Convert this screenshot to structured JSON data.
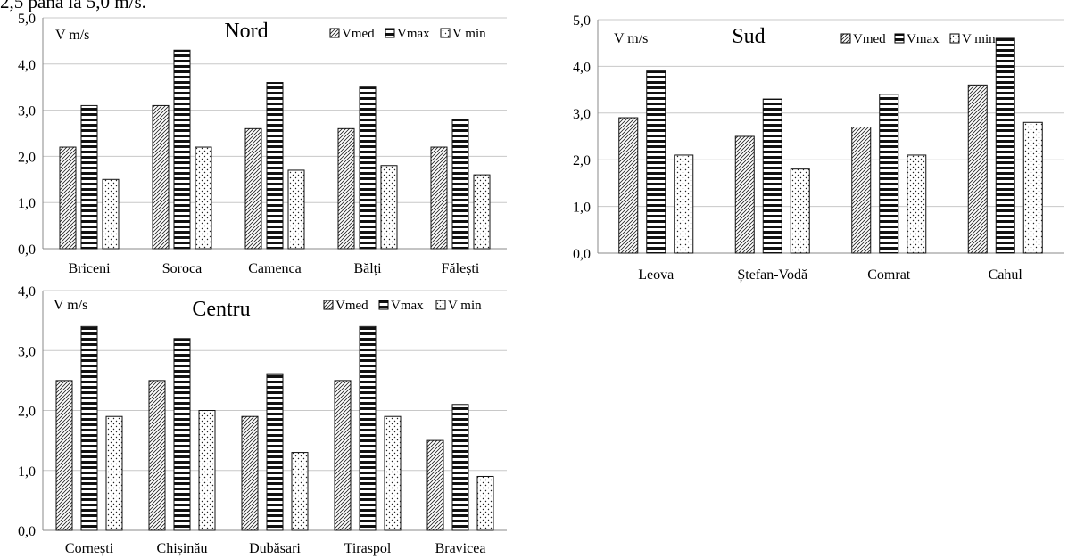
{
  "header_text": "2,5 până la 5,0 m/s.",
  "legend": [
    "Vmed",
    "Vmax",
    "V min"
  ],
  "chart_data": [
    {
      "type": "bar",
      "title": "Nord",
      "ylabel": "V m/s",
      "ylim": [
        0,
        5
      ],
      "yticks": [
        "0,0",
        "1,0",
        "2,0",
        "3,0",
        "4,0",
        "5,0"
      ],
      "grid": true,
      "legend_position": "top-right",
      "categories": [
        "Briceni",
        "Soroca",
        "Camenca",
        "Bălți",
        "Fălești"
      ],
      "series": [
        {
          "name": "Vmed",
          "values": [
            2.2,
            3.1,
            2.6,
            2.6,
            2.2
          ]
        },
        {
          "name": "Vmax",
          "values": [
            3.1,
            4.3,
            3.6,
            3.5,
            2.8
          ]
        },
        {
          "name": "V min",
          "values": [
            1.5,
            2.2,
            1.7,
            1.8,
            1.6
          ]
        }
      ]
    },
    {
      "type": "bar",
      "title": "Sud",
      "ylabel": "V m/s",
      "ylim": [
        0,
        5
      ],
      "yticks": [
        "0,0",
        "1,0",
        "2,0",
        "3,0",
        "4,0",
        "5,0"
      ],
      "grid": true,
      "legend_position": "top-right",
      "categories": [
        "Leova",
        "Ștefan-Vodă",
        "Comrat",
        "Cahul"
      ],
      "series": [
        {
          "name": "Vmed",
          "values": [
            2.9,
            2.5,
            2.7,
            3.6
          ]
        },
        {
          "name": "Vmax",
          "values": [
            3.9,
            3.3,
            3.4,
            4.6
          ]
        },
        {
          "name": "V min",
          "values": [
            2.1,
            1.8,
            2.1,
            2.8
          ]
        }
      ]
    },
    {
      "type": "bar",
      "title": "Centru",
      "ylabel": "V m/s",
      "ylim": [
        0,
        4
      ],
      "yticks": [
        "0,0",
        "1,0",
        "2,0",
        "3,0",
        "4,0"
      ],
      "grid": true,
      "legend_position": "top-right",
      "categories": [
        "Cornești",
        "Chișinău",
        "Dubăsari",
        "Tiraspol",
        "Bravicea"
      ],
      "series": [
        {
          "name": "Vmed",
          "values": [
            2.5,
            2.5,
            1.9,
            2.5,
            1.5
          ]
        },
        {
          "name": "Vmax",
          "values": [
            3.4,
            3.2,
            2.6,
            3.4,
            2.1
          ]
        },
        {
          "name": "V min",
          "values": [
            1.9,
            2.0,
            1.3,
            1.9,
            0.9
          ]
        }
      ]
    }
  ]
}
